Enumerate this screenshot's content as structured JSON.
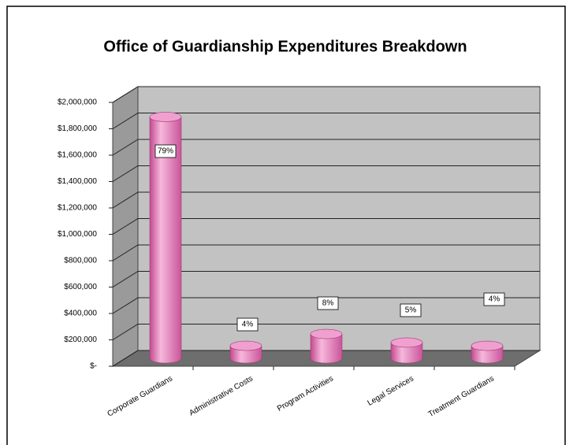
{
  "chart_data": {
    "type": "bar3d",
    "title": "Office of Guardianship Expenditures Breakdown",
    "categories": [
      "Corporate Guardians",
      "Administrative Costs",
      "Program Activities",
      "Legal Services",
      "Treatment Guardians"
    ],
    "values": [
      1830000,
      95000,
      185000,
      120000,
      95000
    ],
    "value_labels": [
      "79%",
      "4%",
      "8%",
      "5%",
      "4%"
    ],
    "color": "#e47cb6",
    "ylim": [
      0,
      2000000
    ],
    "yticks": [
      {
        "value": 0,
        "label": "$-"
      },
      {
        "value": 200000,
        "label": "$200,000"
      },
      {
        "value": 400000,
        "label": "$400,000"
      },
      {
        "value": 600000,
        "label": "$600,000"
      },
      {
        "value": 800000,
        "label": "$800,000"
      },
      {
        "value": 1000000,
        "label": "$1,000,000"
      },
      {
        "value": 1200000,
        "label": "$1,200,000"
      },
      {
        "value": 1400000,
        "label": "$1,400,000"
      },
      {
        "value": 1600000,
        "label": "$1,600,000"
      },
      {
        "value": 1800000,
        "label": "$1,800,000"
      },
      {
        "value": 2000000,
        "label": "$2,000,000"
      }
    ],
    "grid": true
  }
}
